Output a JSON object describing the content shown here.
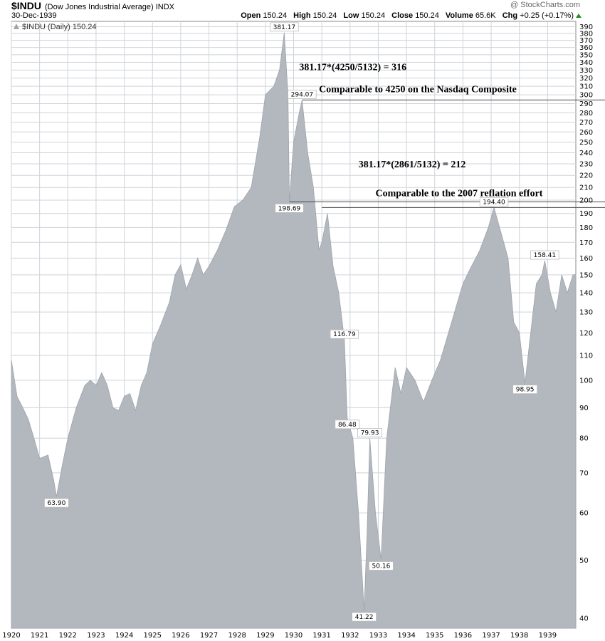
{
  "header": {
    "ticker": "$INDU",
    "name": "(Dow Jones Industrial Average) INDX",
    "date": "30-Dec-1939",
    "brand": "@ StockCharts.com",
    "quote": [
      {
        "label": "Open",
        "value": "150.24"
      },
      {
        "label": "High",
        "value": "150.24"
      },
      {
        "label": "Low",
        "value": "150.24"
      },
      {
        "label": "Close",
        "value": "150.24"
      },
      {
        "label": "Volume",
        "value": "65.6K"
      },
      {
        "label": "Chg",
        "value": "+0.25 (+0.17%)"
      }
    ],
    "legend": "$INDU (Daily) 150.24"
  },
  "colors": {
    "area": "#b3b8bf",
    "area_edge": "#9ea4ab",
    "grid": "#cfd3d8",
    "line": "#444444"
  },
  "chart_data": {
    "type": "area",
    "scale": "log",
    "ylim": [
      38.5,
      398
    ],
    "xlim": [
      1920.0,
      1940.0
    ],
    "y_ticks": [
      40,
      50,
      60,
      70,
      80,
      90,
      100,
      110,
      120,
      130,
      140,
      150,
      160,
      170,
      180,
      190,
      200,
      210,
      220,
      230,
      240,
      250,
      260,
      270,
      280,
      290,
      300,
      310,
      320,
      330,
      340,
      350,
      360,
      370,
      380,
      390
    ],
    "x_ticks": [
      "1920",
      "1921",
      "1922",
      "1923",
      "1924",
      "1925",
      "1926",
      "1927",
      "1928",
      "1929",
      "1930",
      "1931",
      "1932",
      "1933",
      "1934",
      "1935",
      "1936",
      "1937",
      "1938",
      "1939"
    ],
    "series": [
      {
        "x": 1920.0,
        "y": 108
      },
      {
        "x": 1920.2,
        "y": 94
      },
      {
        "x": 1920.4,
        "y": 90
      },
      {
        "x": 1920.6,
        "y": 86
      },
      {
        "x": 1920.8,
        "y": 80
      },
      {
        "x": 1921.0,
        "y": 74
      },
      {
        "x": 1921.3,
        "y": 75
      },
      {
        "x": 1921.5,
        "y": 68
      },
      {
        "x": 1921.6,
        "y": 63.9
      },
      {
        "x": 1921.8,
        "y": 72
      },
      {
        "x": 1922.0,
        "y": 80
      },
      {
        "x": 1922.3,
        "y": 90
      },
      {
        "x": 1922.6,
        "y": 98
      },
      {
        "x": 1922.8,
        "y": 100
      },
      {
        "x": 1923.0,
        "y": 98
      },
      {
        "x": 1923.2,
        "y": 103
      },
      {
        "x": 1923.4,
        "y": 98
      },
      {
        "x": 1923.6,
        "y": 90
      },
      {
        "x": 1923.8,
        "y": 89
      },
      {
        "x": 1924.0,
        "y": 94
      },
      {
        "x": 1924.2,
        "y": 95
      },
      {
        "x": 1924.4,
        "y": 89
      },
      {
        "x": 1924.6,
        "y": 98
      },
      {
        "x": 1924.8,
        "y": 103
      },
      {
        "x": 1925.0,
        "y": 115
      },
      {
        "x": 1925.3,
        "y": 124
      },
      {
        "x": 1925.6,
        "y": 135
      },
      {
        "x": 1925.8,
        "y": 150
      },
      {
        "x": 1926.0,
        "y": 156
      },
      {
        "x": 1926.2,
        "y": 142
      },
      {
        "x": 1926.4,
        "y": 150
      },
      {
        "x": 1926.6,
        "y": 160
      },
      {
        "x": 1926.8,
        "y": 150
      },
      {
        "x": 1927.0,
        "y": 155
      },
      {
        "x": 1927.3,
        "y": 165
      },
      {
        "x": 1927.6,
        "y": 178
      },
      {
        "x": 1927.9,
        "y": 195
      },
      {
        "x": 1928.2,
        "y": 200
      },
      {
        "x": 1928.5,
        "y": 210
      },
      {
        "x": 1928.8,
        "y": 255
      },
      {
        "x": 1929.0,
        "y": 300
      },
      {
        "x": 1929.3,
        "y": 310
      },
      {
        "x": 1929.5,
        "y": 330
      },
      {
        "x": 1929.67,
        "y": 381.17
      },
      {
        "x": 1929.8,
        "y": 300
      },
      {
        "x": 1929.85,
        "y": 198.69
      },
      {
        "x": 1930.0,
        "y": 250
      },
      {
        "x": 1930.2,
        "y": 280
      },
      {
        "x": 1930.3,
        "y": 294.07
      },
      {
        "x": 1930.5,
        "y": 240
      },
      {
        "x": 1930.7,
        "y": 210
      },
      {
        "x": 1930.9,
        "y": 165
      },
      {
        "x": 1931.0,
        "y": 170
      },
      {
        "x": 1931.2,
        "y": 190
      },
      {
        "x": 1931.4,
        "y": 155
      },
      {
        "x": 1931.6,
        "y": 140
      },
      {
        "x": 1931.8,
        "y": 116.79
      },
      {
        "x": 1931.9,
        "y": 86.48
      },
      {
        "x": 1932.1,
        "y": 80
      },
      {
        "x": 1932.3,
        "y": 60
      },
      {
        "x": 1932.5,
        "y": 41.22
      },
      {
        "x": 1932.6,
        "y": 55
      },
      {
        "x": 1932.7,
        "y": 79.93
      },
      {
        "x": 1932.9,
        "y": 60
      },
      {
        "x": 1933.1,
        "y": 50.16
      },
      {
        "x": 1933.3,
        "y": 80
      },
      {
        "x": 1933.6,
        "y": 105
      },
      {
        "x": 1933.8,
        "y": 95
      },
      {
        "x": 1934.0,
        "y": 105
      },
      {
        "x": 1934.3,
        "y": 100
      },
      {
        "x": 1934.6,
        "y": 92
      },
      {
        "x": 1934.9,
        "y": 100
      },
      {
        "x": 1935.2,
        "y": 108
      },
      {
        "x": 1935.6,
        "y": 125
      },
      {
        "x": 1936.0,
        "y": 145
      },
      {
        "x": 1936.3,
        "y": 155
      },
      {
        "x": 1936.6,
        "y": 165
      },
      {
        "x": 1936.9,
        "y": 180
      },
      {
        "x": 1937.1,
        "y": 194.4
      },
      {
        "x": 1937.3,
        "y": 180
      },
      {
        "x": 1937.6,
        "y": 160
      },
      {
        "x": 1937.8,
        "y": 125
      },
      {
        "x": 1938.0,
        "y": 120
      },
      {
        "x": 1938.2,
        "y": 98.95
      },
      {
        "x": 1938.4,
        "y": 120
      },
      {
        "x": 1938.6,
        "y": 145
      },
      {
        "x": 1938.8,
        "y": 150
      },
      {
        "x": 1938.9,
        "y": 158.41
      },
      {
        "x": 1939.1,
        "y": 140
      },
      {
        "x": 1939.3,
        "y": 130
      },
      {
        "x": 1939.5,
        "y": 150
      },
      {
        "x": 1939.7,
        "y": 140
      },
      {
        "x": 1939.9,
        "y": 150
      },
      {
        "x": 1940.0,
        "y": 150.24
      }
    ],
    "peak_labels": [
      {
        "x": 1929.67,
        "y": 381.17,
        "text": "381.17",
        "pos": "above"
      },
      {
        "x": 1930.3,
        "y": 294.07,
        "text": "294.07",
        "pos": "above"
      },
      {
        "x": 1929.85,
        "y": 198.69,
        "text": "198.69",
        "pos": "below"
      },
      {
        "x": 1937.1,
        "y": 194.4,
        "text": "194.40",
        "pos": "above"
      },
      {
        "x": 1938.9,
        "y": 158.41,
        "text": "158.41",
        "pos": "above"
      },
      {
        "x": 1931.8,
        "y": 116.79,
        "text": "116.79",
        "pos": "above"
      },
      {
        "x": 1938.2,
        "y": 98.95,
        "text": "98.95",
        "pos": "below"
      },
      {
        "x": 1931.9,
        "y": 86.48,
        "text": "86.48",
        "pos": "below"
      },
      {
        "x": 1932.7,
        "y": 79.93,
        "text": "79.93",
        "pos": "above"
      },
      {
        "x": 1921.6,
        "y": 63.9,
        "text": "63.90",
        "pos": "below"
      },
      {
        "x": 1933.1,
        "y": 50.16,
        "text": "50.16",
        "pos": "below"
      },
      {
        "x": 1932.5,
        "y": 41.22,
        "text": "41.22",
        "pos": "below"
      }
    ],
    "lines": [
      {
        "x_from": 1930.3,
        "y": 294.07
      },
      {
        "x_from": 1929.85,
        "y": 198.69
      },
      {
        "x_from": 1931.0,
        "y": 194.4
      }
    ],
    "notes": [
      {
        "text": "381.17*(4250/5132) = 316",
        "x": 1930.2,
        "y": 330
      },
      {
        "text": "Comparable to 4250 on the Nasdaq Composite",
        "x": 1930.9,
        "y": 303
      },
      {
        "text": "381.17*(2861/5132) = 212",
        "x": 1932.3,
        "y": 227
      },
      {
        "text": "Comparable to the 2007 reflation effort",
        "x": 1932.9,
        "y": 203
      }
    ]
  }
}
